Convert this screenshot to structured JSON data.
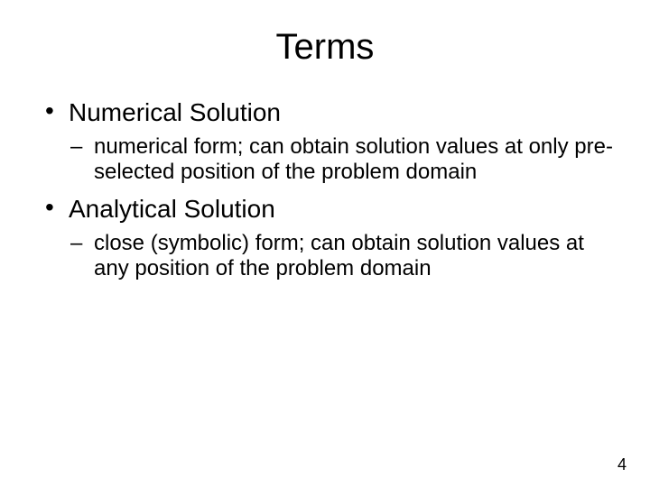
{
  "slide": {
    "title": "Terms",
    "page_number": "4",
    "background_color": "#ffffff",
    "text_color": "#000000",
    "title_fontsize": 40,
    "level1_fontsize": 28,
    "level2_fontsize": 24,
    "items": [
      {
        "label": "Numerical Solution",
        "sub": [
          "numerical form; can obtain solution values at only pre-selected position of the problem domain"
        ]
      },
      {
        "label": "Analytical Solution",
        "sub": [
          "close (symbolic) form; can obtain solution values at any position of the problem domain"
        ]
      }
    ]
  }
}
